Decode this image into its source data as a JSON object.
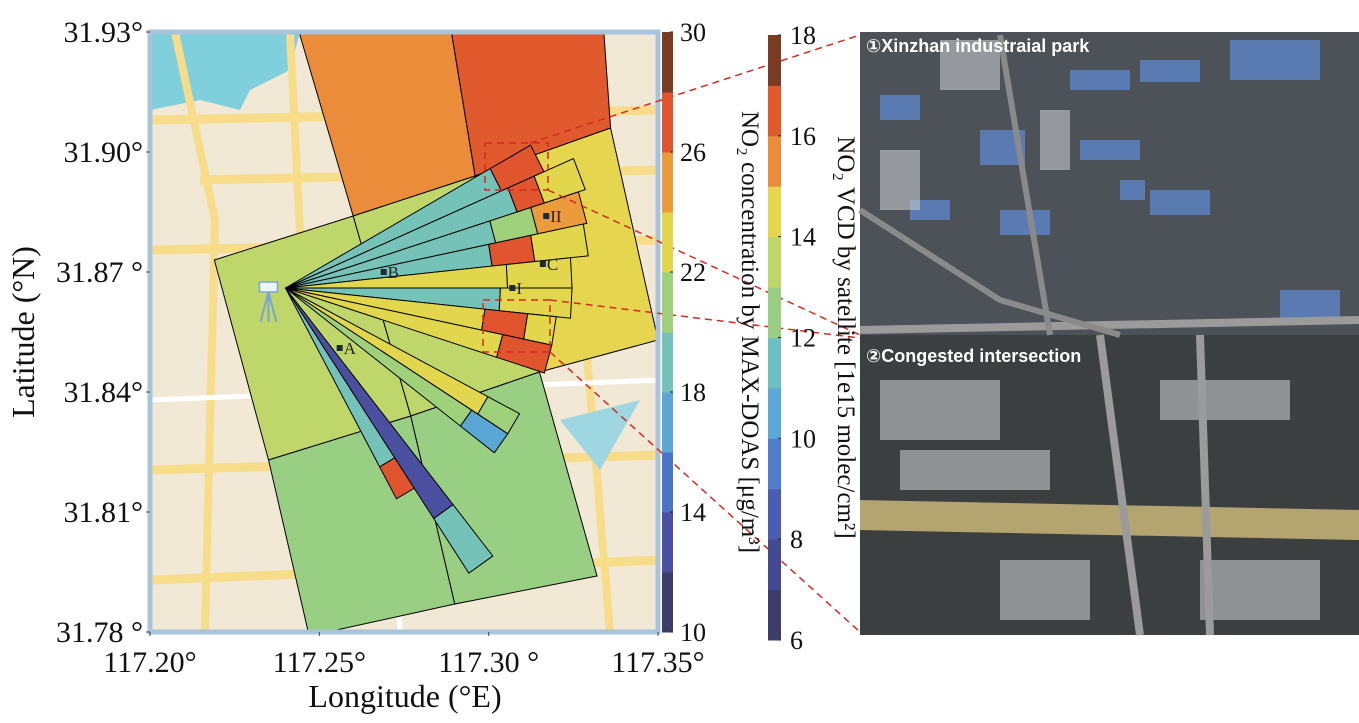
{
  "chart_data": {
    "type": "map",
    "xlabel": "Longitude (°E)",
    "ylabel": "Latitude (°N)",
    "xlim": [
      117.2,
      117.35
    ],
    "ylim": [
      31.78,
      31.93
    ],
    "xticks": [
      {
        "value": 117.2,
        "label": "117.20°"
      },
      {
        "value": 117.25,
        "label": "117.25°"
      },
      {
        "value": 117.3,
        "label": "117.30 °"
      },
      {
        "value": 117.35,
        "label": "117.35°"
      }
    ],
    "yticks": [
      {
        "value": 31.93,
        "label": "31.93°"
      },
      {
        "value": 31.9,
        "label": "31.90°"
      },
      {
        "value": 31.87,
        "label": "31.87 °"
      },
      {
        "value": 31.84,
        "label": "31.84°"
      },
      {
        "value": 31.81,
        "label": "31.81°"
      },
      {
        "value": 31.78,
        "label": "31.78 °"
      }
    ],
    "colorbars": [
      {
        "label": "NO₂ concentration by MAX-DOAS [μg/m³]",
        "lim": [
          10,
          30
        ],
        "ticks": [
          10,
          14,
          18,
          22,
          26,
          30
        ],
        "colors": [
          "#3c3d6a",
          "#4a4fa0",
          "#4a74c6",
          "#5aa7d5",
          "#75c3b8",
          "#9fd07a",
          "#e2d74c",
          "#eb9a3c",
          "#e0552d",
          "#7b3b22"
        ]
      },
      {
        "label": "NO₂ VCD by satellite [1e15 molec/cm²]",
        "lim": [
          6,
          18
        ],
        "ticks": [
          6,
          8,
          10,
          12,
          14,
          16,
          18
        ],
        "colors": [
          "#3c3d6a",
          "#444a92",
          "#4b5db3",
          "#4f7ccb",
          "#58a8d8",
          "#6cc1c0",
          "#99cf82",
          "#bfd76a",
          "#e6d54f",
          "#ea8c3a",
          "#e05a2e",
          "#7b3b22"
        ]
      }
    ],
    "pixels": [
      {
        "corners": [
          [
            117.244,
            31.93
          ],
          [
            117.289,
            31.93
          ],
          [
            117.296,
            31.894
          ],
          [
            117.26,
            31.884
          ]
        ],
        "value": 15.4
      },
      {
        "corners": [
          [
            117.289,
            31.93
          ],
          [
            117.334,
            31.93
          ],
          [
            117.336,
            31.906
          ],
          [
            117.296,
            31.894
          ]
        ],
        "value": 16.4
      },
      {
        "corners": [
          [
            117.296,
            31.894
          ],
          [
            117.336,
            31.906
          ],
          [
            117.35,
            31.853
          ],
          [
            117.315,
            31.845
          ]
        ],
        "value": 14.4
      },
      {
        "corners": [
          [
            117.219,
            31.873
          ],
          [
            117.26,
            31.884
          ],
          [
            117.277,
            31.834
          ],
          [
            117.235,
            31.823
          ]
        ],
        "value": 13.4
      },
      {
        "corners": [
          [
            117.26,
            31.884
          ],
          [
            117.296,
            31.894
          ],
          [
            117.315,
            31.845
          ],
          [
            117.277,
            31.834
          ]
        ],
        "value": 13.4
      },
      {
        "corners": [
          [
            117.235,
            31.823
          ],
          [
            117.277,
            31.834
          ],
          [
            117.29,
            31.787
          ],
          [
            117.247,
            31.779
          ]
        ],
        "value": 12.4
      },
      {
        "corners": [
          [
            117.277,
            31.834
          ],
          [
            117.315,
            31.845
          ],
          [
            117.332,
            31.794
          ],
          [
            117.29,
            31.787
          ]
        ],
        "value": 12.4
      }
    ],
    "instrument": [
      117.24,
      31.866
    ],
    "sectors": [
      {
        "angles": [
          24,
          30
        ],
        "segments": [
          {
            "end": 6.6,
            "value": 19
          },
          {
            "end": 7.9,
            "value": 27
          }
        ]
      },
      {
        "angles": [
          18,
          24
        ],
        "segments": [
          {
            "end": 6.8,
            "value": 19
          },
          {
            "end": 7.6,
            "value": 27
          },
          {
            "end": 8.8,
            "value": 23
          }
        ]
      },
      {
        "angles": [
          12,
          18
        ],
        "segments": [
          {
            "end": 6.0,
            "value": 19
          },
          {
            "end": 7.2,
            "value": 21
          },
          {
            "end": 8.6,
            "value": 24
          }
        ]
      },
      {
        "angles": [
          6,
          12
        ],
        "segments": [
          {
            "end": 5.8,
            "value": 19
          },
          {
            "end": 7.0,
            "value": 27
          },
          {
            "end": 8.5,
            "value": 23
          }
        ]
      },
      {
        "angles": [
          0,
          6
        ],
        "segments": [
          {
            "end": 6.2,
            "value": 22
          },
          {
            "end": 8.0,
            "value": 23
          }
        ]
      },
      {
        "angles": [
          -6,
          0
        ],
        "segments": [
          {
            "end": 6.0,
            "value": 19
          },
          {
            "end": 8.0,
            "value": 22
          }
        ]
      },
      {
        "angles": [
          -12,
          -6
        ],
        "segments": [
          {
            "end": 5.6,
            "value": 22
          },
          {
            "end": 6.8,
            "value": 27
          },
          {
            "end": 7.6,
            "value": 23
          }
        ]
      },
      {
        "angles": [
          -18,
          -12
        ],
        "segments": [
          {
            "end": 6.2,
            "value": 22
          },
          {
            "end": 7.6,
            "value": 27
          }
        ]
      },
      {
        "angles": [
          -33,
          -28
        ],
        "segments": [
          {
            "end": 6.4,
            "value": 22
          },
          {
            "end": 7.4,
            "value": 21
          }
        ]
      },
      {
        "angles": [
          -38,
          -33
        ],
        "segments": [
          {
            "end": 6.2,
            "value": 21
          },
          {
            "end": 7.4,
            "value": 16
          }
        ]
      },
      {
        "angles": [
          -57,
          -52
        ],
        "segments": [
          {
            "end": 7.6,
            "value": 13
          },
          {
            "end": 9.4,
            "value": 19
          }
        ]
      },
      {
        "angles": [
          -62,
          -57
        ],
        "segments": [
          {
            "end": 5.6,
            "value": 19
          },
          {
            "end": 6.6,
            "value": 27
          }
        ]
      }
    ],
    "sites": [
      {
        "label": "A",
        "lon": 117.256,
        "lat": 31.851
      },
      {
        "label": "B",
        "lon": 117.269,
        "lat": 31.87
      },
      {
        "label": "C",
        "lon": 117.316,
        "lat": 31.872
      },
      {
        "label": "I",
        "lon": 117.307,
        "lat": 31.866
      },
      {
        "label": "II",
        "lon": 117.317,
        "lat": 31.884
      }
    ]
  },
  "photos": [
    {
      "caption": "①Xinzhan industraial park"
    },
    {
      "caption": "②Congested intersection"
    }
  ]
}
